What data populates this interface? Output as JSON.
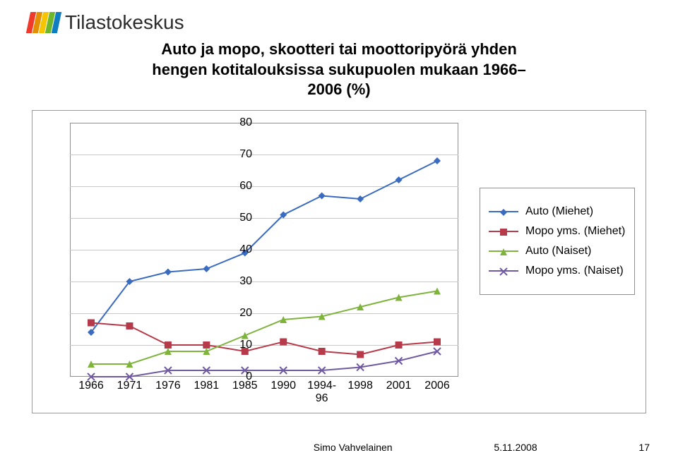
{
  "brand": {
    "name": "Tilastokeskus",
    "bar_colors": [
      "#f03a2c",
      "#e48f00",
      "#f6c400",
      "#6fb72a",
      "#0f7dc2"
    ]
  },
  "title": {
    "line1": "Auto ja mopo, skootteri tai moottoripyörä yhden",
    "line2": "hengen kotitalouksissa sukupuolen mukaan 1966–",
    "line3": "2006 (%)"
  },
  "chart": {
    "type": "line",
    "ylim": [
      0,
      80
    ],
    "ytick_step": 10,
    "yticks": [
      0,
      10,
      20,
      30,
      40,
      50,
      60,
      70,
      80
    ],
    "x_categories": [
      "1966",
      "1971",
      "1976",
      "1981",
      "1985",
      "1990",
      "1994-\n96",
      "1998",
      "2001",
      "2006"
    ],
    "background_color": "#ffffff",
    "grid_color": "#c8c8c8",
    "border_color": "#8e8e8e",
    "label_fontsize": 16,
    "line_width": 2,
    "marker_size": 10,
    "series": [
      {
        "name": "Auto (Miehet)",
        "color": "#3a6bbf",
        "marker": "diamond",
        "values": [
          14,
          30,
          33,
          34,
          39,
          51,
          57,
          56,
          62,
          68
        ]
      },
      {
        "name": "Mopo yms. (Miehet)",
        "color": "#b73a4b",
        "marker": "square",
        "values": [
          17,
          16,
          10,
          10,
          8,
          11,
          8,
          7,
          10,
          11
        ]
      },
      {
        "name": "Auto (Naiset)",
        "color": "#7eb33c",
        "marker": "triangle",
        "values": [
          4,
          4,
          8,
          8,
          13,
          18,
          19,
          22,
          25,
          27
        ]
      },
      {
        "name": "Mopo yms. (Naiset)",
        "color": "#6f5aa0",
        "marker": "x",
        "values": [
          0,
          0,
          2,
          2,
          2,
          2,
          2,
          3,
          5,
          8
        ]
      }
    ]
  },
  "legend_labels": [
    "Auto (Miehet)",
    "Mopo yms. (Miehet)",
    "Auto (Naiset)",
    "Mopo yms. (Naiset)"
  ],
  "footer": {
    "author": "Simo Vahvelainen",
    "date": "5.11.2008",
    "page": "17"
  }
}
